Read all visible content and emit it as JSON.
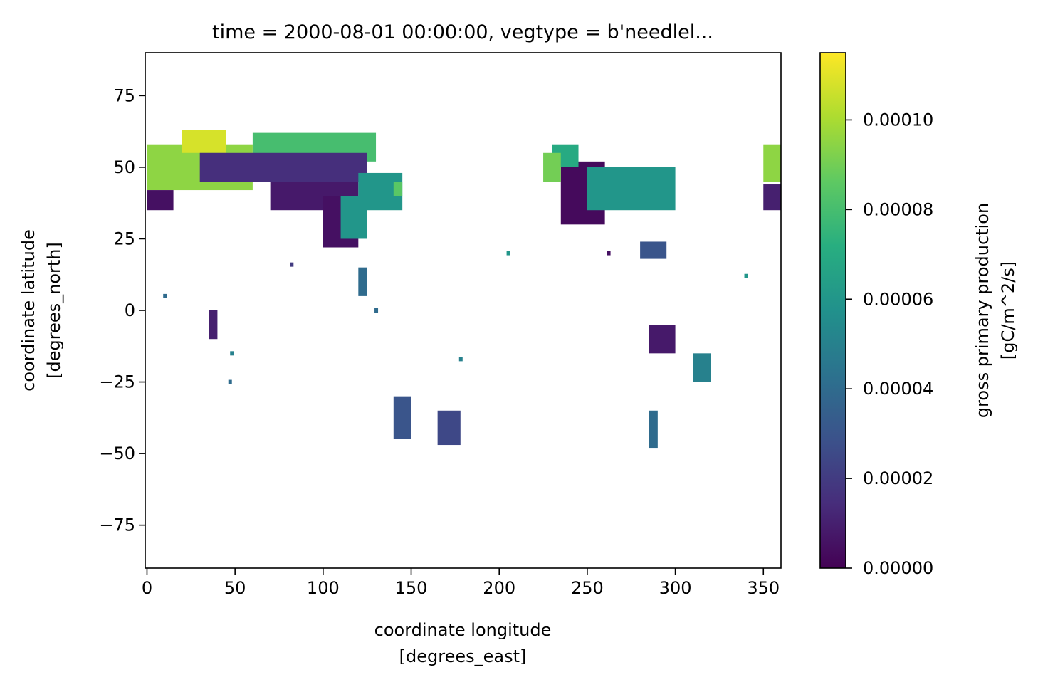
{
  "chart_data": {
    "type": "heatmap",
    "title": "time = 2000-08-01 00:00:00, vegtype = b'needlel...",
    "xlabel": [
      "coordinate longitude",
      "[degrees_east]"
    ],
    "ylabel": [
      "coordinate latitude",
      "[degrees_north]"
    ],
    "colorbar_label": [
      "gross primary production",
      "[gC/m^2/s]"
    ],
    "xlim": [
      -1,
      360
    ],
    "ylim": [
      -90,
      90
    ],
    "xticks": [
      0,
      50,
      100,
      150,
      200,
      250,
      300,
      350
    ],
    "xtick_labels": [
      "0",
      "50",
      "100",
      "150",
      "200",
      "250",
      "300",
      "350"
    ],
    "yticks": [
      75,
      50,
      25,
      0,
      -25,
      -50,
      -75
    ],
    "ytick_labels": [
      "75",
      "50",
      "25",
      "0",
      "−25",
      "−50",
      "−75"
    ],
    "colorbar_range": [
      0,
      0.000115
    ],
    "colorbar_ticks": [
      0,
      2e-05,
      4e-05,
      6e-05,
      8e-05,
      0.0001
    ],
    "colorbar_tick_labels": [
      "0.00000",
      "0.00002",
      "0.00004",
      "0.00006",
      "0.00008",
      "0.00010"
    ],
    "colormap": "viridis",
    "grid": false,
    "regions": [
      {
        "lon": [
          0,
          60
        ],
        "lat": [
          42,
          58
        ],
        "value": 9.5e-05
      },
      {
        "lon": [
          20,
          45
        ],
        "lat": [
          55,
          63
        ],
        "value": 0.000108
      },
      {
        "lon": [
          60,
          130
        ],
        "lat": [
          52,
          62
        ],
        "value": 8e-05
      },
      {
        "lon": [
          30,
          125
        ],
        "lat": [
          45,
          55
        ],
        "value": 1.5e-05
      },
      {
        "lon": [
          0,
          15
        ],
        "lat": [
          35,
          42
        ],
        "value": 5e-06
      },
      {
        "lon": [
          70,
          120
        ],
        "lat": [
          35,
          45
        ],
        "value": 8e-06
      },
      {
        "lon": [
          100,
          120
        ],
        "lat": [
          22,
          40
        ],
        "value": 5e-06
      },
      {
        "lon": [
          110,
          125
        ],
        "lat": [
          25,
          40
        ],
        "value": 6e-05
      },
      {
        "lon": [
          120,
          145
        ],
        "lat": [
          35,
          48
        ],
        "value": 6e-05
      },
      {
        "lon": [
          140,
          145
        ],
        "lat": [
          40,
          45
        ],
        "value": 8.5e-05
      },
      {
        "lon": [
          235,
          260
        ],
        "lat": [
          30,
          52
        ],
        "value": 3e-06
      },
      {
        "lon": [
          250,
          300
        ],
        "lat": [
          35,
          50
        ],
        "value": 6e-05
      },
      {
        "lon": [
          230,
          245
        ],
        "lat": [
          50,
          58
        ],
        "value": 7e-05
      },
      {
        "lon": [
          225,
          235
        ],
        "lat": [
          45,
          55
        ],
        "value": 9e-05
      },
      {
        "lon": [
          280,
          295
        ],
        "lat": [
          18,
          24
        ],
        "value": 3e-05
      },
      {
        "lon": [
          350,
          360
        ],
        "lat": [
          45,
          58
        ],
        "value": 9.5e-05
      },
      {
        "lon": [
          350,
          360
        ],
        "lat": [
          35,
          44
        ],
        "value": 1e-05
      },
      {
        "lon": [
          120,
          125
        ],
        "lat": [
          5,
          15
        ],
        "value": 4e-05
      },
      {
        "lon": [
          165,
          178
        ],
        "lat": [
          -47,
          -35
        ],
        "value": 2.5e-05
      },
      {
        "lon": [
          285,
          290
        ],
        "lat": [
          -48,
          -35
        ],
        "value": 4e-05
      },
      {
        "lon": [
          285,
          300
        ],
        "lat": [
          -15,
          -5
        ],
        "value": 8e-06
      },
      {
        "lon": [
          310,
          320
        ],
        "lat": [
          -25,
          -15
        ],
        "value": 5e-05
      },
      {
        "lon": [
          140,
          150
        ],
        "lat": [
          -45,
          -30
        ],
        "value": 3e-05
      },
      {
        "lon": [
          35,
          40
        ],
        "lat": [
          -10,
          0
        ],
        "value": 1e-05
      }
    ],
    "points": [
      {
        "lon": 205,
        "lat": 20,
        "value": 6e-05
      },
      {
        "lon": 10,
        "lat": 5,
        "value": 4e-05
      },
      {
        "lon": 48,
        "lat": -15,
        "value": 5e-05
      },
      {
        "lon": 47,
        "lat": -25,
        "value": 4e-05
      },
      {
        "lon": 178,
        "lat": -17,
        "value": 5e-05
      },
      {
        "lon": 262,
        "lat": 20,
        "value": 5e-06
      },
      {
        "lon": 340,
        "lat": 12,
        "value": 6e-05
      },
      {
        "lon": 82,
        "lat": 16,
        "value": 2e-05
      },
      {
        "lon": 130,
        "lat": 0,
        "value": 4e-05
      }
    ]
  }
}
